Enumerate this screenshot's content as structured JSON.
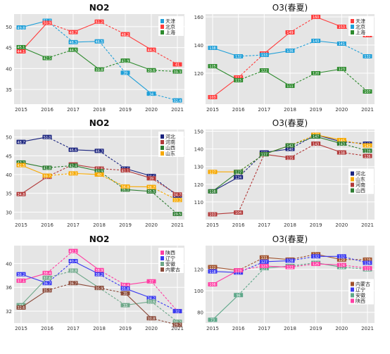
{
  "chart_data": [
    {
      "type": "line",
      "title": "NO2",
      "x": [
        2015,
        2016,
        2017,
        2018,
        2019,
        2020,
        2021
      ],
      "ylim": [
        31.5,
        53
      ],
      "yticks": [
        35,
        40,
        45,
        50
      ],
      "legend_position": "top-right",
      "series": [
        {
          "name": "天津",
          "color": "#1f9fd8",
          "values": [
            49.8,
            51.4,
            46.3,
            46.5,
            39.0,
            34.0,
            32.4
          ],
          "labels": [
            "49.8",
            "51.4",
            "46.3",
            "46.5",
            "39",
            "34",
            "32.4"
          ]
        },
        {
          "name": "北京",
          "color": "#ff3b3b",
          "values": [
            44.1,
            50.9,
            48.7,
            51.2,
            48.2,
            44.5,
            41.0
          ],
          "labels": [
            "44.1",
            "50.9",
            "48.7",
            "51.2",
            "48.2",
            "44.5",
            "41"
          ]
        },
        {
          "name": "上海",
          "color": "#2e8b2e",
          "values": [
            45.1,
            42.5,
            44.5,
            39.8,
            41.9,
            39.6,
            39.3
          ],
          "labels": [
            "45.1",
            "42.5",
            "44.5",
            "39.8",
            "41.9",
            "39.6",
            "39.3"
          ]
        }
      ]
    },
    {
      "type": "line",
      "title": "O3(春夏)",
      "x": [
        2015,
        2016,
        2017,
        2018,
        2019,
        2020,
        2021
      ],
      "ylim": [
        98,
        162
      ],
      "yticks": [
        120,
        140,
        160
      ],
      "legend_position": "top-right",
      "series": [
        {
          "name": "天津",
          "color": "#ff3b3b",
          "values": [
            103,
            117,
            134,
            149,
            160,
            153,
            147
          ],
          "labels": [
            "103",
            "117",
            "134",
            "149",
            "160",
            "153",
            "147"
          ]
        },
        {
          "name": "北京",
          "color": "#1f9fd8",
          "values": [
            138,
            132,
            133,
            136,
            143,
            141,
            132
          ],
          "labels": [
            "138",
            "132",
            "133",
            "136",
            "143",
            "141",
            "132"
          ]
        },
        {
          "name": "上海",
          "color": "#2e8b2e",
          "values": [
            125,
            115,
            122,
            111,
            120,
            123,
            107
          ],
          "labels": [
            "125",
            "115",
            "122",
            "111",
            "120",
            "123",
            "107"
          ]
        }
      ]
    },
    {
      "type": "line",
      "title": "NO2",
      "x": [
        2015,
        2016,
        2017,
        2018,
        2019,
        2020,
        2021
      ],
      "ylim": [
        28,
        52
      ],
      "yticks": [
        30,
        35,
        40,
        45,
        50
      ],
      "legend_position": "top-right",
      "series": [
        {
          "name": "河北",
          "color": "#1a237e",
          "values": [
            48.7,
            50.0,
            46.6,
            46.3,
            41.6,
            39.6,
            34.4
          ],
          "labels": [
            "48.7",
            "50.0",
            "46.6",
            "46.3",
            "41.6",
            "39.6",
            "34.4"
          ]
        },
        {
          "name": "河南",
          "color": "#b23a3a",
          "values": [
            34.8,
            39.4,
            42.7,
            41.6,
            41.1,
            39.0,
            34.7
          ],
          "labels": [
            "34.8",
            "39.4",
            "42.7",
            "41.6",
            "41.1",
            "39",
            "34.7"
          ]
        },
        {
          "name": "山西",
          "color": "#2e7d32",
          "values": [
            43.2,
            41.8,
            42.4,
            40.9,
            36.0,
            35.5,
            29.5
          ],
          "labels": [
            "43.2",
            "41.8",
            "42.4",
            "40.9",
            "36.0",
            "35.5",
            "29.5"
          ]
        },
        {
          "name": "山东",
          "color": "#f6a800",
          "values": [
            42.5,
            39.7,
            40.3,
            40.0,
            36.8,
            36.7,
            33.2
          ],
          "labels": [
            "42.5",
            "39.7",
            "40.3",
            "40",
            "36.8",
            "36.7",
            "33.2"
          ]
        }
      ]
    },
    {
      "type": "line",
      "title": "O3(春夏)",
      "x": [
        2015,
        2016,
        2017,
        2018,
        2019,
        2020,
        2021
      ],
      "ylim": [
        100,
        151
      ],
      "yticks": [
        110,
        120,
        130,
        140,
        150
      ],
      "legend_position": "right",
      "series": [
        {
          "name": "河北",
          "color": "#1a237e",
          "values": [
            116,
            124,
            138,
            140,
            148,
            144,
            143
          ],
          "labels": [
            "116",
            "124",
            "138",
            "140",
            "148",
            "144",
            "143"
          ]
        },
        {
          "name": "山东",
          "color": "#f6a800",
          "values": [
            127,
            127,
            137,
            142,
            148,
            145,
            142
          ],
          "labels": [
            "127",
            "127",
            "137",
            "142",
            "148",
            "145",
            "142"
          ]
        },
        {
          "name": "河南",
          "color": "#b23a3a",
          "values": [
            103,
            104,
            137,
            135,
            143,
            138,
            136
          ],
          "labels": [
            "103",
            "104",
            "137",
            "135",
            "143",
            "138",
            "136"
          ]
        },
        {
          "name": "山西",
          "color": "#2e7d32",
          "values": [
            116,
            127,
            137,
            142,
            147,
            143,
            139
          ],
          "labels": [
            "116",
            "127",
            "137",
            "142",
            "147",
            "143",
            "139"
          ]
        }
      ]
    },
    {
      "type": "line",
      "title": "NO2",
      "x": [
        2015,
        2016,
        2017,
        2018,
        2019,
        2020,
        2021
      ],
      "ylim": [
        30,
        43
      ],
      "yticks": [
        32,
        36,
        40
      ],
      "legend_position": "top-right",
      "series": [
        {
          "name": "陕西",
          "color": "#ff3fa4",
          "values": [
            37.1,
            38.4,
            42.1,
            38.9,
            36.4,
            37.0,
            32.0
          ],
          "labels": [
            "37.1",
            "38.4",
            "42.1",
            "38.9",
            "36.4",
            "37",
            "32"
          ]
        },
        {
          "name": "辽宁",
          "color": "#3a3af0",
          "values": [
            38.2,
            36.7,
            40.4,
            38.2,
            35.8,
            34.2,
            32.0
          ],
          "labels": [
            "38.2",
            "36.7",
            "40.4",
            "38.2",
            "35.8",
            "34.2",
            "32"
          ]
        },
        {
          "name": "安徽",
          "color": "#6fa88a",
          "values": [
            33.0,
            37.6,
            38.8,
            35.9,
            33.0,
            33.6,
            30.2
          ],
          "labels": [
            "33",
            "37.6",
            "38.8",
            "35.9",
            "33",
            "33.6",
            "30.2"
          ]
        },
        {
          "name": "内蒙古",
          "color": "#8b4a3a",
          "values": [
            32.6,
            35.5,
            36.7,
            35.9,
            35.0,
            30.8,
            29.7
          ],
          "labels": [
            "32.6",
            "35.5",
            "36.7",
            "35.9",
            "35",
            "30.8",
            "29.7"
          ]
        }
      ]
    },
    {
      "type": "line",
      "title": "O3(春夏)",
      "x": [
        2015,
        2016,
        2017,
        2018,
        2019,
        2020,
        2021
      ],
      "ylim": [
        70,
        142
      ],
      "yticks": [
        80,
        100,
        120
      ],
      "legend_position": "right",
      "series": [
        {
          "name": "内蒙古",
          "color": "#a0522d",
          "values": [
            122,
            119,
            131,
            129,
            134,
            129,
            129
          ],
          "labels": [
            "122",
            "119",
            "131",
            "129",
            "134",
            "129",
            "129"
          ]
        },
        {
          "name": "辽宁",
          "color": "#3a3af0",
          "values": [
            118,
            117,
            127,
            128,
            132,
            132,
            126
          ],
          "labels": [
            "118",
            "117",
            "127",
            "128",
            "132",
            "132",
            "126"
          ]
        },
        {
          "name": "安徽",
          "color": "#5fa88a",
          "values": [
            73,
            96,
            121,
            123,
            126,
            122,
            120
          ],
          "labels": [
            "73",
            "96",
            "121",
            "123",
            "126",
            "122",
            "120"
          ]
        },
        {
          "name": "陕西",
          "color": "#ff3fa4",
          "values": [
            106,
            119,
            123,
            122,
            125,
            124,
            121
          ],
          "labels": [
            "106",
            "119",
            "123",
            "122",
            "125",
            "124",
            "121"
          ]
        }
      ]
    }
  ]
}
